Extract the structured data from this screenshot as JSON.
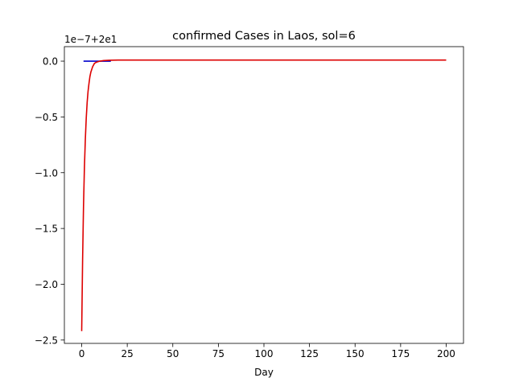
{
  "chart_data": {
    "type": "line",
    "title": "confirmed Cases in Laos, sol=6",
    "xlabel": "Day",
    "ylabel": "",
    "offset_text": "1e−7+2e1",
    "xlim": [
      -9.5,
      209.5
    ],
    "ylim": [
      -2.53,
      0.13
    ],
    "x_ticks": [
      0,
      25,
      50,
      75,
      100,
      125,
      150,
      175,
      200
    ],
    "x_tick_labels": [
      "0",
      "25",
      "50",
      "75",
      "100",
      "125",
      "150",
      "175",
      "200"
    ],
    "y_ticks": [
      0.0,
      -0.5,
      -1.0,
      -1.5,
      -2.0,
      -2.5
    ],
    "y_tick_labels": [
      "0.0",
      "−0.5",
      "−1.0",
      "−1.5",
      "−2.0",
      "−2.5"
    ],
    "grid": false,
    "series": [
      {
        "color": "#0000cc",
        "kind": "observed",
        "x": [
          1,
          16
        ],
        "y": [
          0.0,
          0.0
        ]
      },
      {
        "color": "#dd0000",
        "kind": "model",
        "x": [
          0,
          0.5,
          1,
          1.5,
          2,
          2.5,
          3,
          3.5,
          4,
          4.5,
          5,
          6,
          7,
          8,
          10,
          12,
          15,
          20,
          50,
          100,
          150,
          200
        ],
        "y": [
          -2.42,
          -1.78,
          -1.3,
          -0.95,
          -0.7,
          -0.51,
          -0.37,
          -0.27,
          -0.2,
          -0.14,
          -0.1,
          -0.05,
          -0.02,
          -0.01,
          0.0,
          0.005,
          0.008,
          0.01,
          0.01,
          0.01,
          0.01,
          0.01
        ]
      }
    ]
  }
}
